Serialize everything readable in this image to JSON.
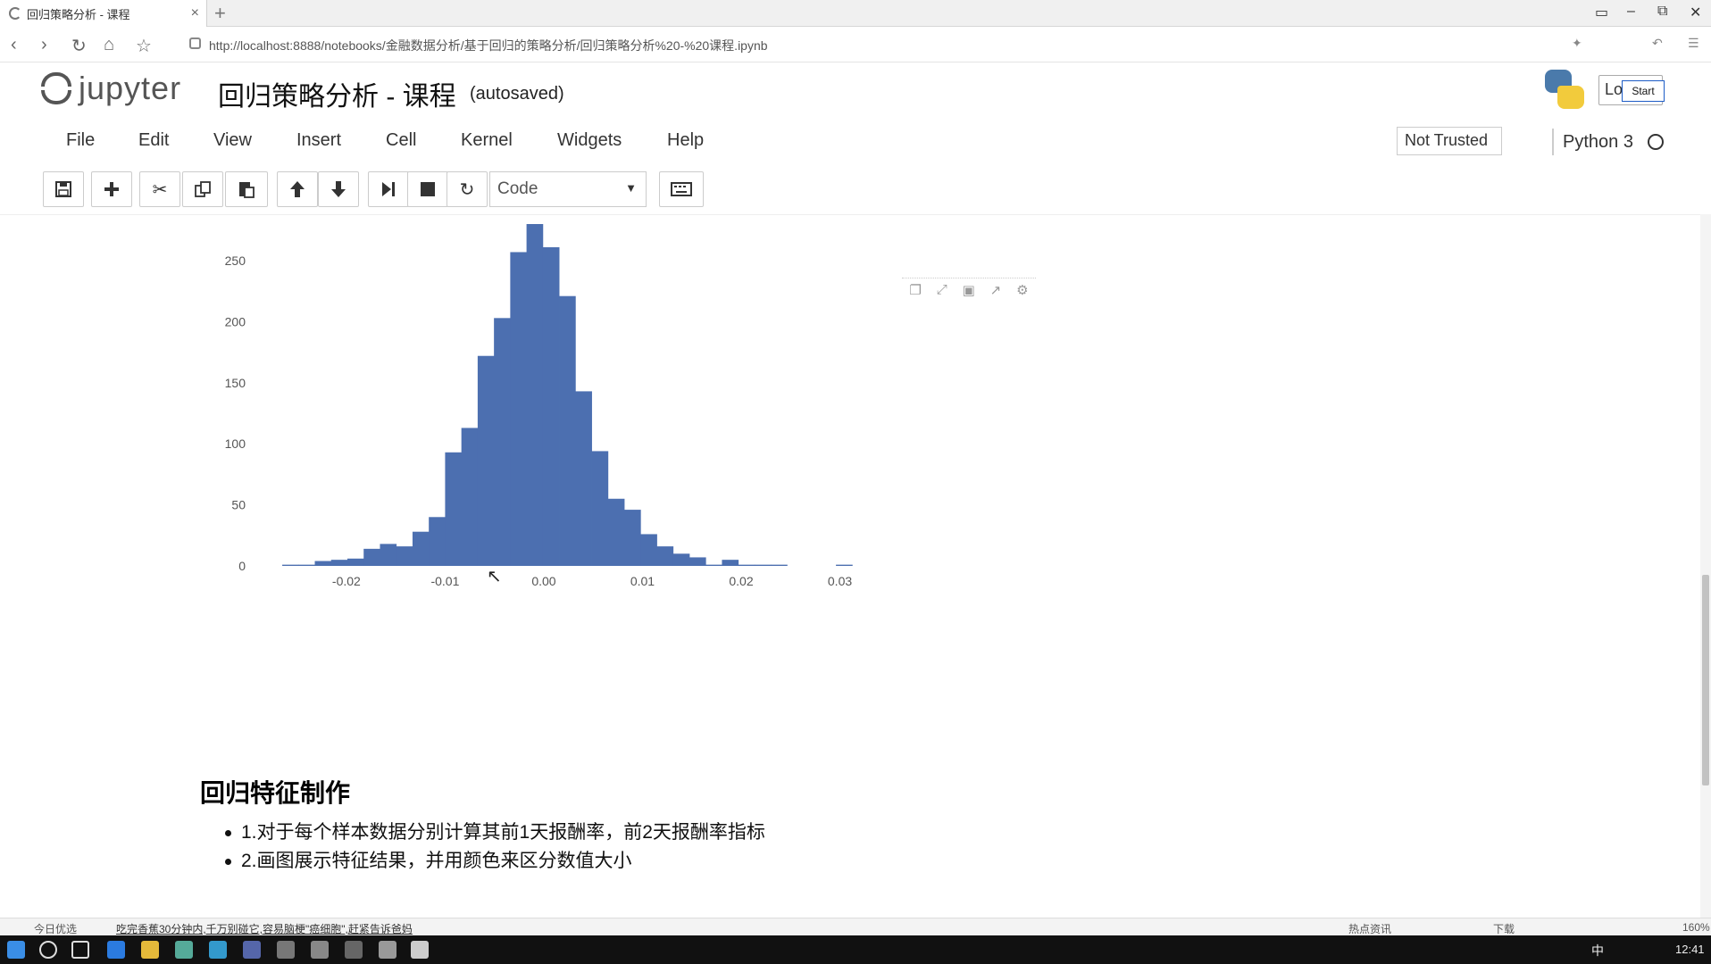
{
  "browser": {
    "tab_title": "回归策略分析 - 课程",
    "tab_close": "×",
    "new_tab": "+",
    "url_host": "http://localhost",
    "url_rest": ":8888/notebooks/金融数据分析/基于回归的策略分析/回归策略分析%20-%20课程.ipynb"
  },
  "jupyter": {
    "logo_text": "jupyter",
    "notebook_title": "回归策略分析 - 课程",
    "autosave": "(autosaved)",
    "logout_partial": "Lo",
    "start_label": "Start",
    "menu": [
      "File",
      "Edit",
      "View",
      "Insert",
      "Cell",
      "Kernel",
      "Widgets",
      "Help"
    ],
    "trust": "Not Trusted",
    "kernel": "Python 3",
    "cell_type": "Code"
  },
  "toolbar_icons": [
    "save-icon",
    "plus-icon",
    "cut-icon",
    "copy-icon",
    "paste-icon",
    "arrow-up-icon",
    "arrow-down-icon",
    "run-icon",
    "stop-icon",
    "restart-icon",
    "keyboard-icon"
  ],
  "chart_data": {
    "type": "bar",
    "title": "",
    "xlabel": "",
    "ylabel": "",
    "xlim": [
      -0.0275,
      0.0295
    ],
    "ylim": [
      0,
      280
    ],
    "xticks": [
      "-0.02",
      "-0.01",
      "0.00",
      "0.01",
      "0.02",
      "0.03"
    ],
    "yticks": [
      "0",
      "50",
      "100",
      "150",
      "200",
      "250"
    ],
    "bin_width": 0.00165,
    "color": "#4c6fb0",
    "bins": [
      {
        "x": -0.0265,
        "y": 1
      },
      {
        "x": -0.02485,
        "y": 1
      },
      {
        "x": -0.0232,
        "y": 4
      },
      {
        "x": -0.02155,
        "y": 5
      },
      {
        "x": -0.0199,
        "y": 6
      },
      {
        "x": -0.01825,
        "y": 14
      },
      {
        "x": -0.0166,
        "y": 18
      },
      {
        "x": -0.01495,
        "y": 16
      },
      {
        "x": -0.0133,
        "y": 28
      },
      {
        "x": -0.01165,
        "y": 40
      },
      {
        "x": -0.01,
        "y": 93
      },
      {
        "x": -0.00835,
        "y": 113
      },
      {
        "x": -0.0067,
        "y": 172
      },
      {
        "x": -0.00505,
        "y": 203
      },
      {
        "x": -0.0034,
        "y": 257
      },
      {
        "x": -0.00175,
        "y": 280
      },
      {
        "x": -0.0001,
        "y": 261
      },
      {
        "x": 0.00155,
        "y": 221
      },
      {
        "x": 0.0032,
        "y": 143
      },
      {
        "x": 0.00485,
        "y": 94
      },
      {
        "x": 0.0065,
        "y": 55
      },
      {
        "x": 0.00815,
        "y": 46
      },
      {
        "x": 0.0098,
        "y": 26
      },
      {
        "x": 0.01145,
        "y": 16
      },
      {
        "x": 0.0131,
        "y": 10
      },
      {
        "x": 0.01475,
        "y": 7
      },
      {
        "x": 0.0164,
        "y": 1
      },
      {
        "x": 0.01805,
        "y": 5
      },
      {
        "x": 0.0197,
        "y": 1
      },
      {
        "x": 0.02135,
        "y": 1
      },
      {
        "x": 0.023,
        "y": 1
      },
      {
        "x": 0.0296,
        "y": 1
      }
    ]
  },
  "markdown": {
    "heading": "回归特征制作",
    "items": [
      "1.对于每个样本数据分别计算其前1天报酬率，前2天报酬率指标",
      "2.画图展示特征结果，并用颜色来区分数值大小"
    ]
  },
  "status": {
    "left": "今日优选",
    "news": "吃完香蕉30分钟内,千万别碰它,容易脑梗\"癌细胞\",赶紧告诉爸妈",
    "right_items": [
      "热点资讯",
      "下载",
      "160%"
    ]
  },
  "taskbar": {
    "ime": "中",
    "clock": "12:41"
  }
}
